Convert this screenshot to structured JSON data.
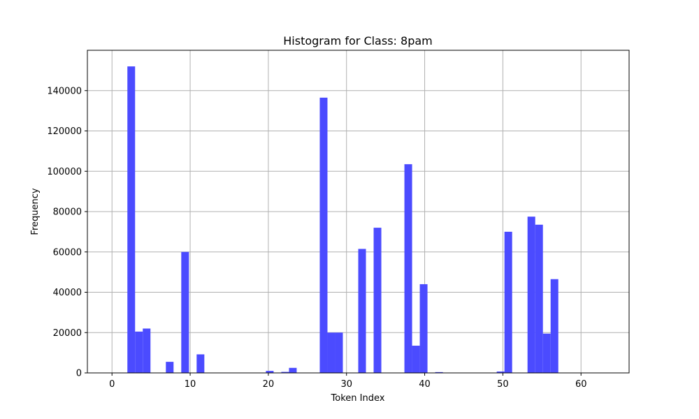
{
  "chart_data": {
    "type": "bar",
    "title": "Histogram for Class: 8pam",
    "xlabel": "Token Index",
    "ylabel": "Frequency",
    "xlim": [
      -3.15,
      66.15
    ],
    "ylim": [
      0,
      160000
    ],
    "xticks": [
      0,
      10,
      20,
      30,
      40,
      50,
      60
    ],
    "yticks": [
      0,
      20000,
      40000,
      60000,
      80000,
      100000,
      120000,
      140000
    ],
    "grid": true,
    "bar_color": "#4b4bff",
    "bin_width": 0.984375,
    "bins": [
      {
        "x0": 1.96875,
        "value": 152000
      },
      {
        "x0": 2.953125,
        "value": 20500
      },
      {
        "x0": 3.9375,
        "value": 22000
      },
      {
        "x0": 6.890625,
        "value": 5500
      },
      {
        "x0": 8.859375,
        "value": 60000
      },
      {
        "x0": 10.828125,
        "value": 9200
      },
      {
        "x0": 19.6875,
        "value": 1000
      },
      {
        "x0": 21.65625,
        "value": 500
      },
      {
        "x0": 22.640625,
        "value": 2500
      },
      {
        "x0": 26.578125,
        "value": 136500
      },
      {
        "x0": 27.5625,
        "value": 20000
      },
      {
        "x0": 28.546875,
        "value": 20000
      },
      {
        "x0": 31.5,
        "value": 61500
      },
      {
        "x0": 33.46875,
        "value": 72000
      },
      {
        "x0": 37.40625,
        "value": 103500
      },
      {
        "x0": 38.390625,
        "value": 13500
      },
      {
        "x0": 39.375,
        "value": 44000
      },
      {
        "x0": 41.34375,
        "value": 400
      },
      {
        "x0": 49.21875,
        "value": 700
      },
      {
        "x0": 50.203125,
        "value": 70000
      },
      {
        "x0": 53.15625,
        "value": 77500
      },
      {
        "x0": 54.140625,
        "value": 73500
      },
      {
        "x0": 55.125,
        "value": 19500
      },
      {
        "x0": 56.109375,
        "value": 46500
      }
    ]
  }
}
